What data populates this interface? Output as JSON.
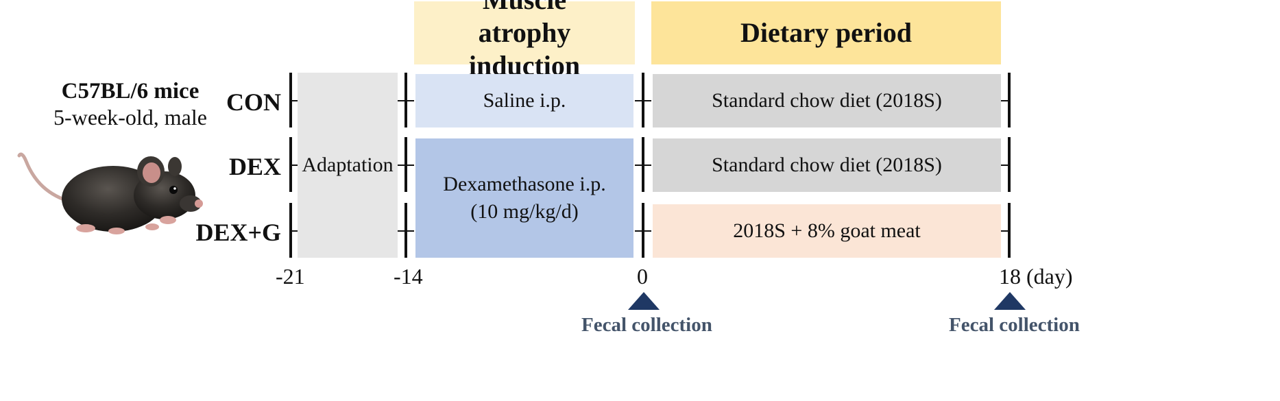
{
  "subject": {
    "title": "C57BL/6 mice",
    "subtitle": "5-week-old, male",
    "image_icon": "mouse-icon"
  },
  "phases": {
    "induction": "Muscle atrophy induction",
    "dietary": "Dietary period"
  },
  "groups": [
    "CON",
    "DEX",
    "DEX+G"
  ],
  "cells": {
    "adaptation": "Adaptation",
    "saline": "Saline i.p.",
    "dexamethasone": "Dexamethasone i.p.",
    "dose": "(10 mg/kg/d)",
    "con_diet": "Standard chow diet (2018S)",
    "dex_diet": "Standard chow diet (2018S)",
    "dexg_diet": "2018S + 8% goat meat"
  },
  "axis": {
    "ticks": [
      "-21",
      "-14",
      "0",
      "18"
    ],
    "unit": "(day)"
  },
  "markers": {
    "fecal_1": "Fecal collection",
    "fecal_2": "Fecal collection",
    "marker_color": "#1f3864"
  },
  "colors": {
    "phase_induction": "#fdf0c8",
    "phase_dietary": "#fde49a",
    "adaptation": "#e6e6e6",
    "saline": "#d9e3f4",
    "dexamethasone": "#b3c6e7",
    "standard_diet": "#d6d6d6",
    "goat_diet": "#fbe5d6"
  }
}
